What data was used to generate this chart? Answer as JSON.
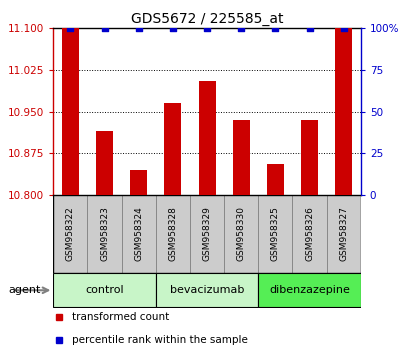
{
  "title": "GDS5672 / 225585_at",
  "samples": [
    "GSM958322",
    "GSM958323",
    "GSM958324",
    "GSM958328",
    "GSM958329",
    "GSM958330",
    "GSM958325",
    "GSM958326",
    "GSM958327"
  ],
  "red_values": [
    11.1,
    10.915,
    10.845,
    10.965,
    11.005,
    10.935,
    10.855,
    10.935,
    11.1
  ],
  "blue_values": [
    100,
    100,
    100,
    100,
    100,
    100,
    100,
    100,
    100
  ],
  "groups": [
    {
      "label": "control",
      "indices": [
        0,
        1,
        2
      ],
      "color": "#c8f5c8"
    },
    {
      "label": "bevacizumab",
      "indices": [
        3,
        4,
        5
      ],
      "color": "#c8f5c8"
    },
    {
      "label": "dibenzazepine",
      "indices": [
        6,
        7,
        8
      ],
      "color": "#55ee55"
    }
  ],
  "ylim_left": [
    10.8,
    11.1
  ],
  "ylim_right": [
    0,
    100
  ],
  "yticks_left": [
    10.8,
    10.875,
    10.95,
    11.025,
    11.1
  ],
  "yticks_right": [
    0,
    25,
    50,
    75,
    100
  ],
  "bar_color": "#cc0000",
  "dot_color": "#0000cc",
  "bar_bottom": 10.8,
  "agent_label": "agent",
  "legend_red": "transformed count",
  "legend_blue": "percentile rank within the sample",
  "sample_cell_color": "#cccccc",
  "sample_cell_edge": "#888888"
}
